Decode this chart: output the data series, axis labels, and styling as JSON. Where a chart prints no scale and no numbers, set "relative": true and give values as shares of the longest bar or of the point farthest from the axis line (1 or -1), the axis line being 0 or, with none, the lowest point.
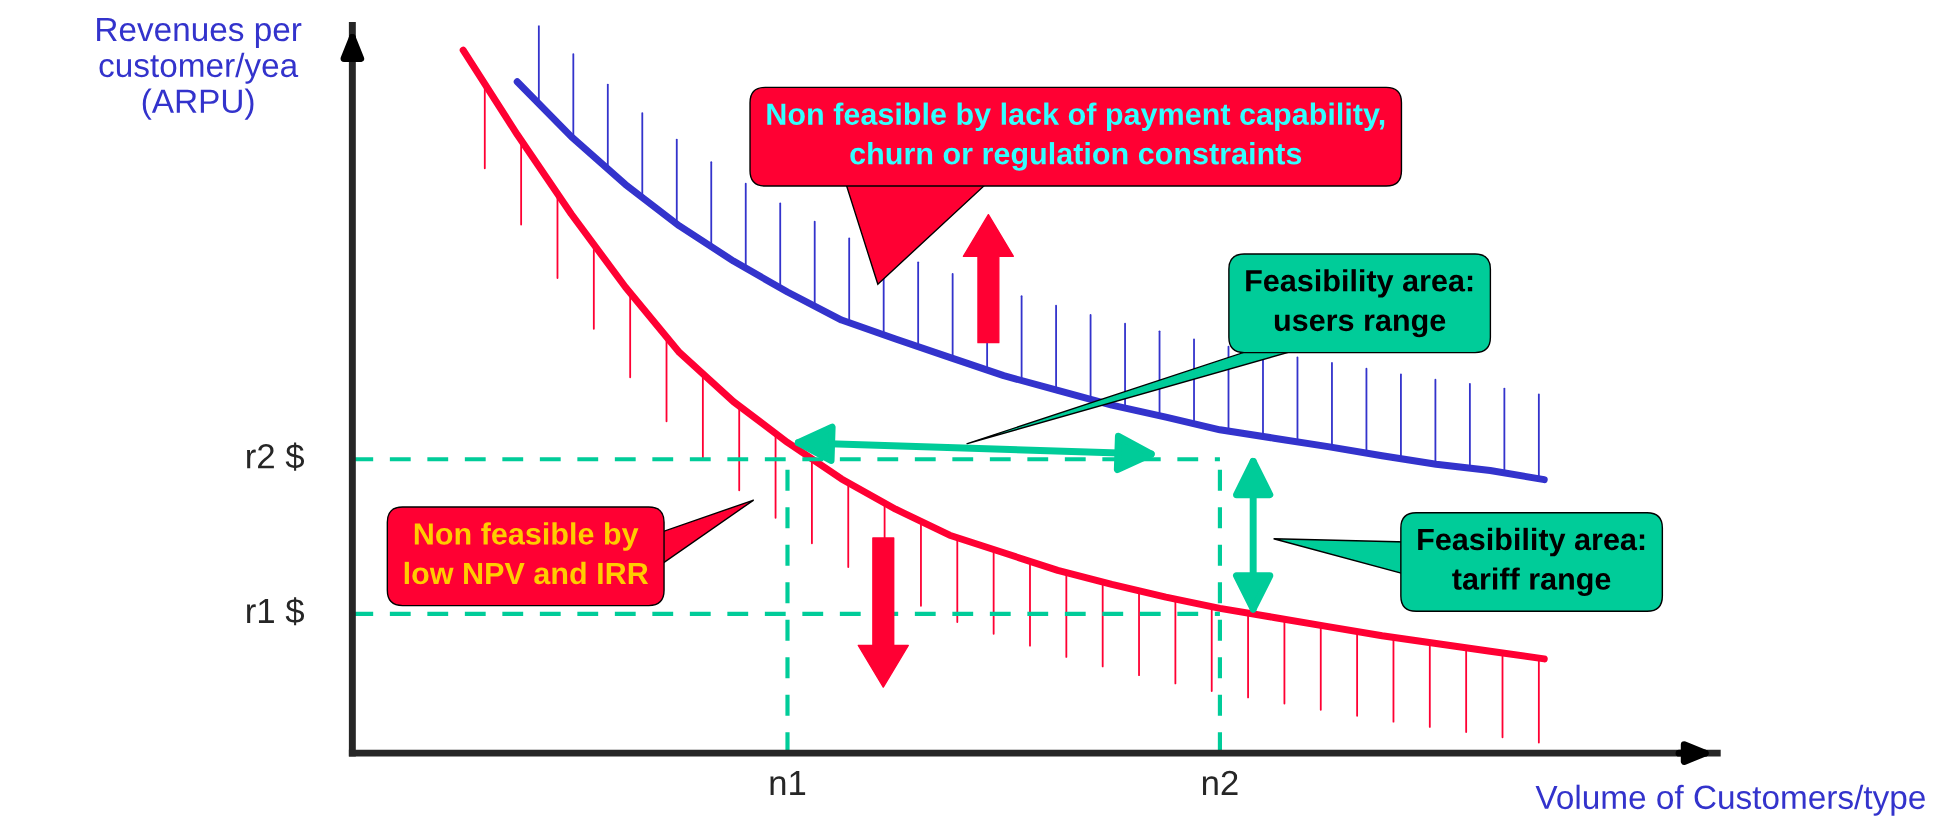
{
  "chart_data": {
    "type": "line",
    "relative": true,
    "xlabel": "Volume of Customers/type",
    "ylabel": "Revenues per\ncustomer/yea\n(ARPU)",
    "marker": "none",
    "line_style": "solid",
    "categories": [
      null,
      null,
      null,
      null,
      null,
      null,
      "n1",
      null,
      null,
      null,
      null,
      null,
      null,
      null,
      "n2",
      null,
      null,
      null,
      null,
      null,
      null
    ],
    "series": [
      {
        "color": "#ff0033",
        "values": [
          1.0,
          0.88,
          0.767,
          0.663,
          0.57,
          0.5,
          0.442,
          0.39,
          0.347,
          0.31,
          0.285,
          0.26,
          0.24,
          0.222,
          0.206,
          0.193,
          0.18,
          0.167,
          0.156,
          0.145,
          0.134
        ]
      },
      {
        "color": "#3333cc",
        "values": [
          null,
          0.955,
          0.877,
          0.809,
          0.75,
          0.7,
          0.656,
          0.616,
          0.589,
          0.563,
          0.537,
          0.516,
          0.495,
          0.478,
          0.46,
          0.448,
          0.436,
          0.423,
          0.411,
          0.402,
          0.389
        ]
      }
    ],
    "ref_lines": [
      {
        "axis": "y",
        "value": 0.418,
        "label": "r2 $",
        "color": "#00cc99",
        "line_style": "dashed"
      },
      {
        "axis": "y",
        "value": 0.198,
        "label": "r1 $",
        "color": "#00cc99",
        "line_style": "dashed"
      },
      {
        "axis": "x",
        "value": "n1",
        "color": "#00cc99",
        "line_style": "dashed"
      },
      {
        "axis": "x",
        "value": "n2",
        "color": "#00cc99",
        "line_style": "dashed"
      }
    ],
    "annotations": [
      "Non feasible by lack of payment capability,\nchurn or regulation constraints",
      "Feasibility area:\nusers range",
      "Feasibility area:\ntariff range",
      "Non feasible by\nlow NPV and IRR"
    ]
  }
}
